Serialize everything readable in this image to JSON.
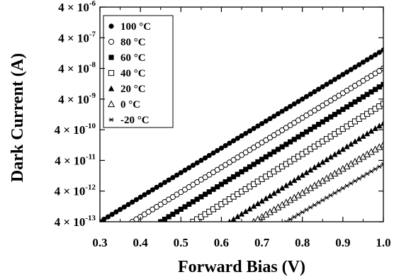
{
  "chart_data": {
    "type": "scatter",
    "xlabel": "Forward Bias (V)",
    "ylabel": "Dark Current (A)",
    "xlim": [
      0.3,
      1.0
    ],
    "ylim": [
      4e-13,
      4e-06
    ],
    "y_scale": "log",
    "grid": false,
    "legend_position": "top-left",
    "x_ticks": [
      {
        "value": 0.3,
        "label": "0.3"
      },
      {
        "value": 0.4,
        "label": "0.4"
      },
      {
        "value": 0.5,
        "label": "0.5"
      },
      {
        "value": 0.6,
        "label": "0.6"
      },
      {
        "value": 0.7,
        "label": "0.7"
      },
      {
        "value": 0.8,
        "label": "0.8"
      },
      {
        "value": 0.9,
        "label": "0.9"
      },
      {
        "value": 1.0,
        "label": "1.0"
      }
    ],
    "y_ticks": [
      {
        "value": 4e-13,
        "mantissa": "4 × 10",
        "exponent": "-13"
      },
      {
        "value": 4e-12,
        "mantissa": "4 × 10",
        "exponent": "-12"
      },
      {
        "value": 4e-11,
        "mantissa": "4 × 10",
        "exponent": "-11"
      },
      {
        "value": 4e-10,
        "mantissa": "4 × 10",
        "exponent": "-10"
      },
      {
        "value": 4e-09,
        "mantissa": "4 × 10",
        "exponent": "-9"
      },
      {
        "value": 4e-08,
        "mantissa": "4 × 10",
        "exponent": "-8"
      },
      {
        "value": 4e-07,
        "mantissa": "4 × 10",
        "exponent": "-7"
      },
      {
        "value": 4e-06,
        "mantissa": "4 × 10",
        "exponent": "-6"
      }
    ],
    "series": [
      {
        "name": "100 °C",
        "marker": "filled-circle",
        "x_start": 0.3,
        "x_end": 1.0,
        "y_start": 4e-13,
        "y_end": 1.6e-07
      },
      {
        "name": "80 °C",
        "marker": "open-circle",
        "x_start": 0.38,
        "x_end": 1.0,
        "y_start": 4e-13,
        "y_end": 4e-08
      },
      {
        "name": "60 °C",
        "marker": "filled-square",
        "x_start": 0.45,
        "x_end": 1.0,
        "y_start": 4e-13,
        "y_end": 1.2e-08
      },
      {
        "name": "40 °C",
        "marker": "open-square",
        "x_start": 0.53,
        "x_end": 1.0,
        "y_start": 4e-13,
        "y_end": 2.8e-09
      },
      {
        "name": "20 °C",
        "marker": "filled-triangle",
        "x_start": 0.62,
        "x_end": 1.0,
        "y_start": 4e-13,
        "y_end": 6.5e-10
      },
      {
        "name": "0 °C",
        "marker": "open-triangle",
        "x_start": 0.68,
        "x_end": 1.0,
        "y_start": 4e-13,
        "y_end": 1.3e-10
      },
      {
        "name": "-20 °C",
        "marker": "star",
        "x_start": 0.76,
        "x_end": 1.0,
        "y_start": 4e-13,
        "y_end": 3e-11
      }
    ]
  }
}
